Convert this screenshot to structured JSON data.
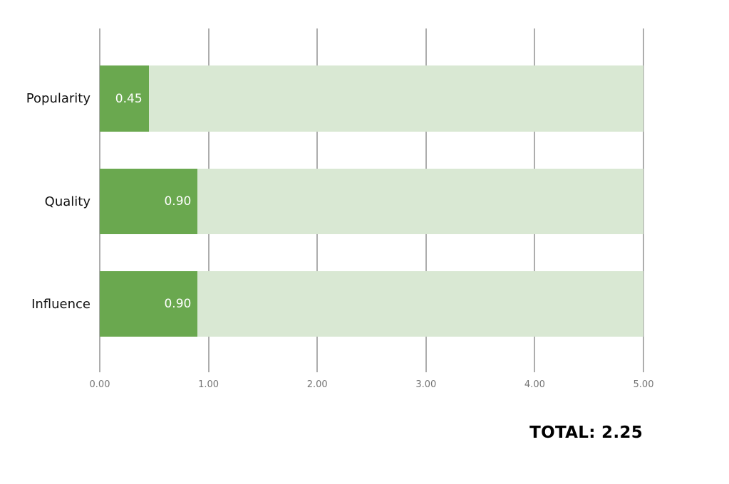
{
  "chart_data": {
    "type": "bar",
    "orientation": "horizontal",
    "title": "",
    "categories": [
      "Popularity",
      "Quality",
      "Influence"
    ],
    "values": [
      0.45,
      0.9,
      0.9
    ],
    "value_labels": [
      "0.45",
      "0.90",
      "0.90"
    ],
    "xlim": [
      0,
      5
    ],
    "x_tick_values": [
      0,
      1,
      2,
      3,
      4,
      5
    ],
    "x_tick_labels": [
      "0.00",
      "1.00",
      "2.00",
      "3.00",
      "4.00",
      "5.00"
    ],
    "grid": "vertical",
    "legend": "none",
    "track_full_scale": true,
    "colors": {
      "bar_fill": "#6aa84f",
      "bar_track": "#d9e8d3",
      "gridline": "#5b5b5b",
      "tick_label_text": "#757575",
      "category_label_text": "#111111",
      "value_label_text": "#ffffff",
      "total_text": "#000000",
      "background": "#ffffff"
    }
  },
  "total_label": "TOTAL: 2.25"
}
